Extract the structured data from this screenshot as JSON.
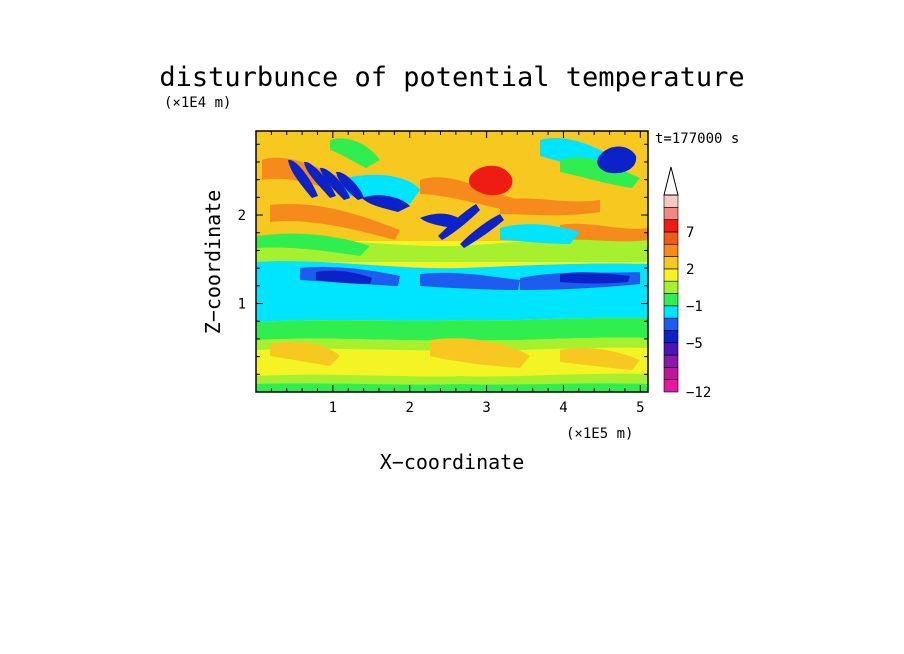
{
  "chart_data": {
    "type": "heatmap",
    "title": "disturbunce of potential temperature",
    "time_label": "t=177000 s",
    "xlabel": "X−coordinate",
    "ylabel": "Z−coordinate",
    "x_unit": "(×1E5 m)",
    "y_unit": "(×1E4 m)",
    "xlim": [
      0,
      5.1
    ],
    "ylim": [
      0,
      2.95
    ],
    "x_ticks": [
      {
        "v": 1,
        "label": "1"
      },
      {
        "v": 2,
        "label": "2"
      },
      {
        "v": 3,
        "label": "3"
      },
      {
        "v": 4,
        "label": "4"
      },
      {
        "v": 5,
        "label": "5"
      }
    ],
    "y_ticks": [
      {
        "v": 1,
        "label": "1"
      },
      {
        "v": 2,
        "label": "2"
      }
    ],
    "colorbar": {
      "colors": [
        "#e8159e",
        "#c0169e",
        "#8a18aa",
        "#4a16b6",
        "#0a22c8",
        "#1e5cf0",
        "#00e5ff",
        "#30ee50",
        "#a6f030",
        "#f4f424",
        "#f6c820",
        "#f68a1c",
        "#f05a16",
        "#ee1c12",
        "#f08a80",
        "#f8c8c4"
      ],
      "labels": [
        {
          "v": -12,
          "label": "−12"
        },
        {
          "v": -5,
          "label": "−5"
        },
        {
          "v": -1,
          "label": "−1"
        },
        {
          "v": 2,
          "label": "2"
        },
        {
          "v": 7,
          "label": "7"
        }
      ],
      "extend_max": true
    },
    "dominant_levels_by_height": [
      {
        "z_range": [
          0,
          0.1
        ],
        "color": "#a6f030"
      },
      {
        "z_range": [
          0.1,
          0.65
        ],
        "color": "#f4f424"
      },
      {
        "z_range": [
          0.65,
          0.85
        ],
        "color": "#30ee50"
      },
      {
        "z_range": [
          0.85,
          1.35
        ],
        "color": "#00e5ff"
      },
      {
        "z_range": [
          1.35,
          1.55
        ],
        "color": "#1e5cf0"
      },
      {
        "z_range": [
          1.55,
          1.8
        ],
        "color": "#a6f030"
      },
      {
        "z_range": [
          1.8,
          2.95
        ],
        "color": "#f6c820"
      }
    ]
  }
}
